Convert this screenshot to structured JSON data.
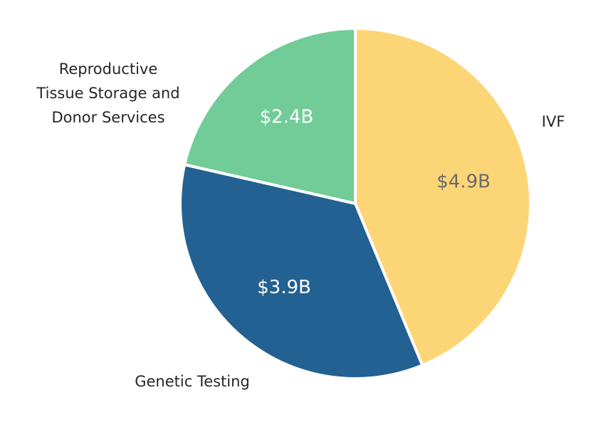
{
  "chart_data": {
    "type": "pie",
    "unit": "$B",
    "slices": [
      {
        "label": "IVF",
        "value": 4.9,
        "value_label": "$4.9B",
        "color": "#FCD577",
        "text_color": "#6B6B6B"
      },
      {
        "label": "Genetic Testing",
        "value": 3.9,
        "value_label": "$3.9B",
        "color": "#236192",
        "text_color": "#FFFFFF"
      },
      {
        "label": "Reproductive Tissue Storage and Donor Services",
        "label_lines": [
          "Reproductive",
          "Tissue Storage and",
          "Donor Services"
        ],
        "value": 2.4,
        "value_label": "$2.4B",
        "color": "#71CC98",
        "text_color": "#FFFFFF"
      }
    ],
    "start_angle_deg": 0,
    "direction": "clockwise",
    "legend": "none",
    "label_placement": "outside"
  }
}
